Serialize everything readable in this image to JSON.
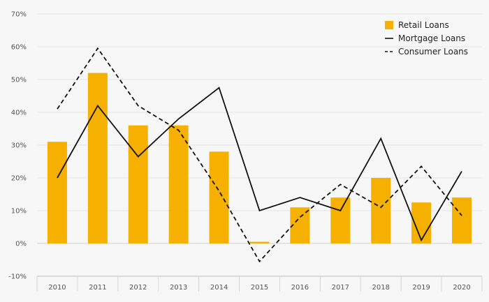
{
  "chart_data": {
    "type": "bar",
    "categories": [
      "2010",
      "2011",
      "2012",
      "2013",
      "2014",
      "2015",
      "2016",
      "2017",
      "2018",
      "2019",
      "2020"
    ],
    "ylim": [
      -10,
      70
    ],
    "yticks": [
      -10,
      0,
      10,
      20,
      30,
      40,
      50,
      60,
      70
    ],
    "ytick_labels": [
      "-10%",
      "0%",
      "10%",
      "20%",
      "30%",
      "40%",
      "50%",
      "60%",
      "70%"
    ],
    "grid": true,
    "legend_position": "top-right",
    "series": [
      {
        "name": "Retail Loans",
        "kind": "bar",
        "color": "#f5b000",
        "values": [
          31,
          52,
          36,
          36,
          28,
          0.5,
          11,
          14,
          20,
          12.5,
          14
        ]
      },
      {
        "name": "Mortgage Loans",
        "kind": "line",
        "style": "solid",
        "color": "#111111",
        "values": [
          20,
          42,
          26.5,
          38,
          47.5,
          10,
          14,
          10,
          32,
          1,
          22
        ]
      },
      {
        "name": "Consumer Loans",
        "kind": "line",
        "style": "dashed",
        "color": "#111111",
        "values": [
          41,
          59.5,
          42,
          34.5,
          16,
          -5.5,
          8,
          18,
          11,
          23.5,
          8.5
        ]
      }
    ]
  }
}
